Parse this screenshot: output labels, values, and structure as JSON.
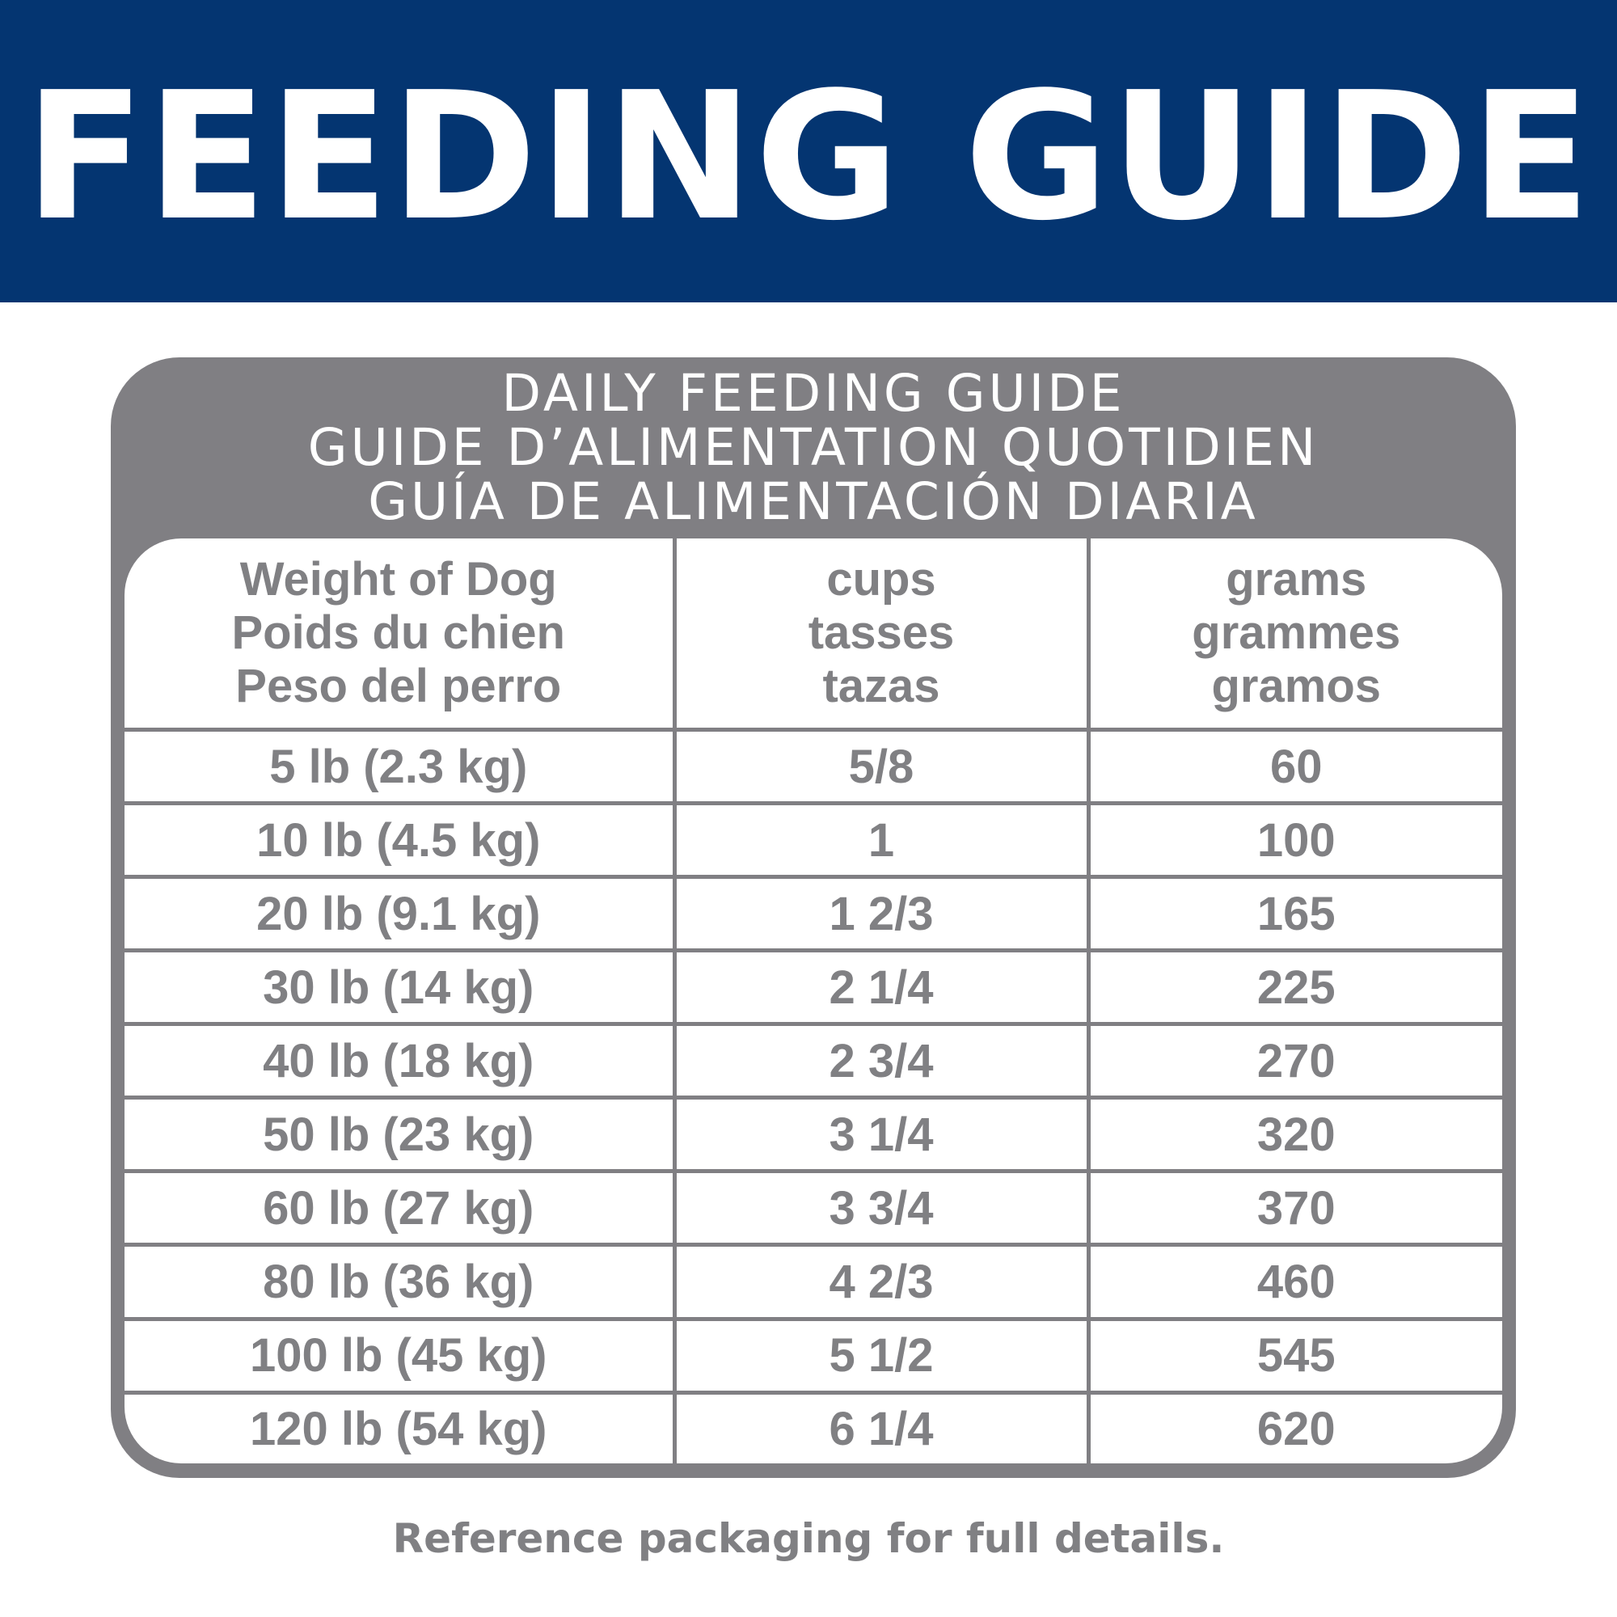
{
  "banner": {
    "title": "FEEDING GUIDE",
    "background_color": "#043571",
    "text_color": "#ffffff"
  },
  "panel": {
    "color": "#807f83",
    "headings": [
      "DAILY FEEDING GUIDE",
      "GUIDE D’ALIMENTATION QUOTIDIEN",
      "GUÍA DE ALIMENTACIÓN DIARIA"
    ]
  },
  "table": {
    "columns": [
      [
        "Weight of Dog",
        "Poids du chien",
        "Peso del perro"
      ],
      [
        "cups",
        "tasses",
        "tazas"
      ],
      [
        "grams",
        "grammes",
        "gramos"
      ]
    ],
    "rows": [
      [
        "5 lb (2.3 kg)",
        "5/8",
        "60"
      ],
      [
        "10 lb (4.5 kg)",
        "1",
        "100"
      ],
      [
        "20 lb (9.1 kg)",
        "1 2/3",
        "165"
      ],
      [
        "30 lb (14 kg)",
        "2 1/4",
        "225"
      ],
      [
        "40 lb (18 kg)",
        "2 3/4",
        "270"
      ],
      [
        "50 lb (23 kg)",
        "3 1/4",
        "320"
      ],
      [
        "60 lb (27 kg)",
        "3 3/4",
        "370"
      ],
      [
        "80 lb (36 kg)",
        "4 2/3",
        "460"
      ],
      [
        "100 lb (45 kg)",
        "5 1/2",
        "545"
      ],
      [
        "120 lb (54 kg)",
        "6 1/4",
        "620"
      ]
    ]
  },
  "footnote": "Reference packaging for full details."
}
